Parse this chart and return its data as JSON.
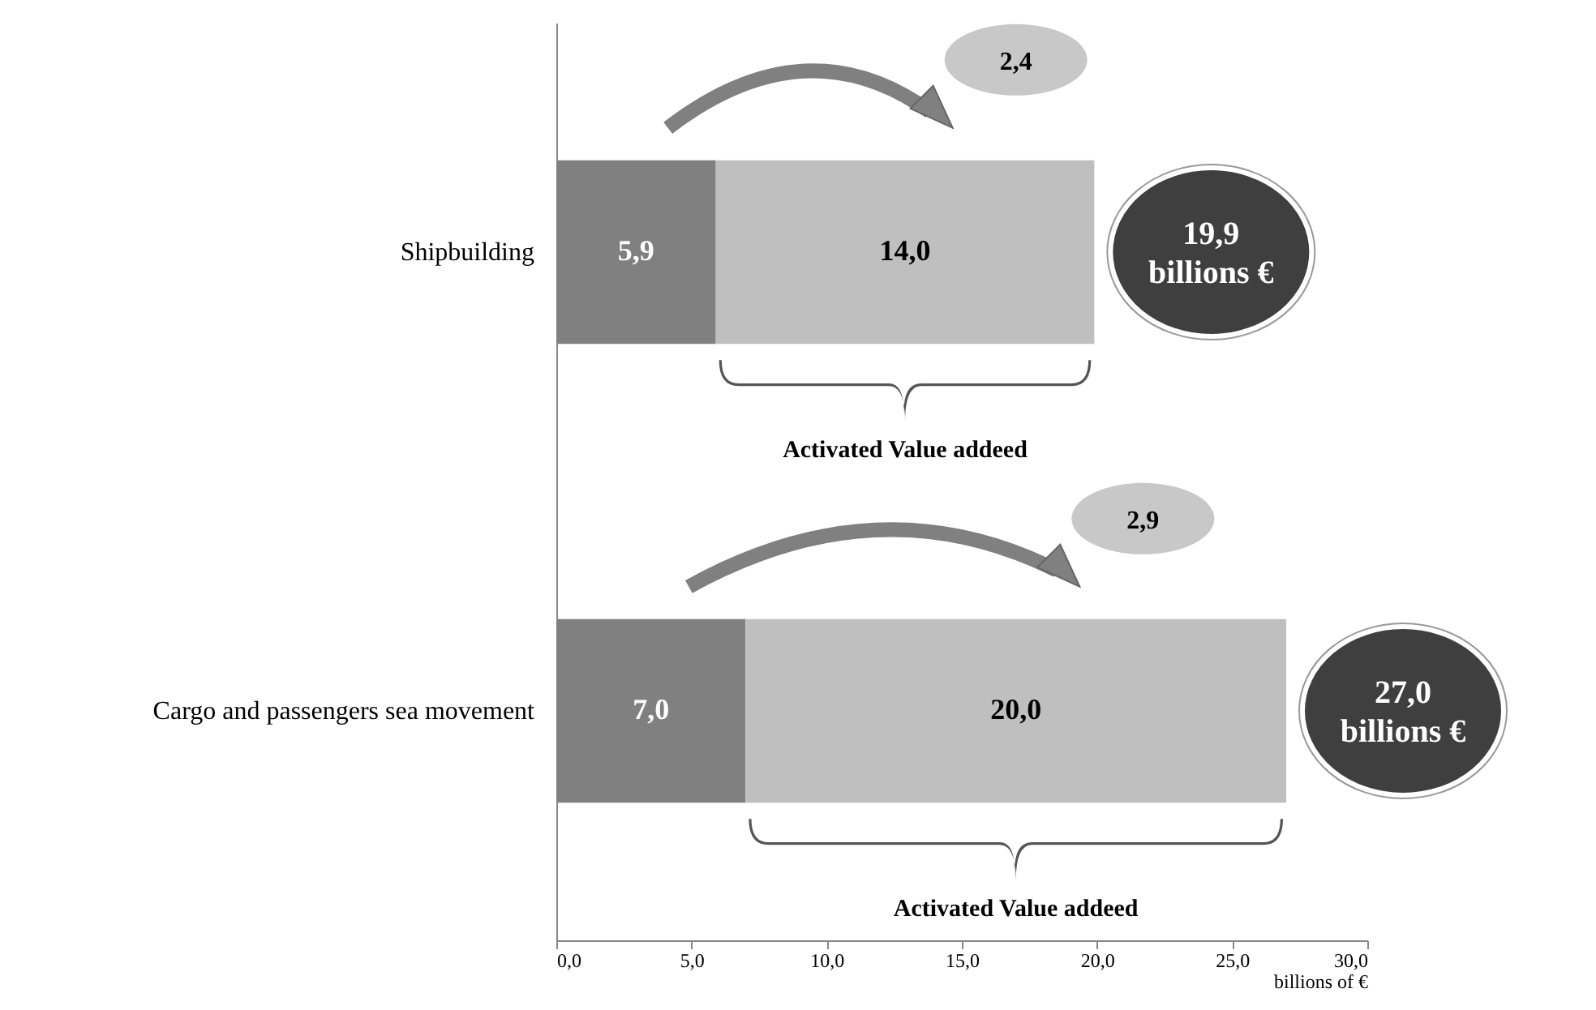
{
  "chart_data": {
    "type": "bar",
    "orientation": "horizontal",
    "stacked": true,
    "categories": [
      "Shipbuilding",
      "Cargo and passengers sea movement"
    ],
    "series": [
      {
        "color": "#808080",
        "values": [
          5.9,
          7.0
        ],
        "value_labels": [
          "5,9",
          "7,0"
        ]
      },
      {
        "color": "#bfbfbf",
        "values": [
          14.0,
          20.0
        ],
        "value_labels": [
          "14,0",
          "20,0"
        ]
      }
    ],
    "totals": [
      "19,9 billions €",
      "27,0 billions €"
    ],
    "annotations": [
      "2,4",
      "Activated Value addeed",
      "2,9",
      "Activated Value addeed"
    ],
    "xlabel": "billions of €",
    "xlim": [
      0,
      30
    ],
    "xticks": [
      {
        "value": 0,
        "label": "0,0"
      },
      {
        "value": 5,
        "label": "5,0"
      },
      {
        "value": 10,
        "label": "10,0"
      },
      {
        "value": 15,
        "label": "15,0"
      },
      {
        "value": 20,
        "label": "20,0"
      },
      {
        "value": 25,
        "label": "25,0"
      },
      {
        "value": 30,
        "label": "30,0"
      }
    ],
    "grid": false
  }
}
